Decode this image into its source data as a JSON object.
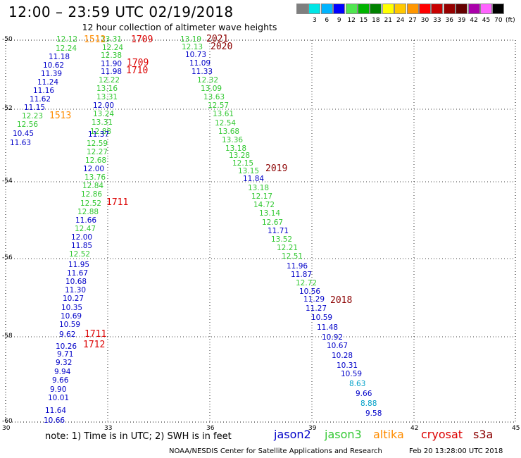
{
  "header": {
    "title": "12:00 – 23:59 UTC 02/19/2018",
    "subtitle": "12 hour collection of altimeter wave heights"
  },
  "color_scale": {
    "unit": "(ft)",
    "bins": [
      {
        "label": "",
        "color": "#7f7f7f"
      },
      {
        "label": "3",
        "color": "#00e6e6"
      },
      {
        "label": "6",
        "color": "#00b4ff"
      },
      {
        "label": "9",
        "color": "#0000ff"
      },
      {
        "label": "12",
        "color": "#50e650"
      },
      {
        "label": "15",
        "color": "#00b400"
      },
      {
        "label": "18",
        "color": "#008200"
      },
      {
        "label": "21",
        "color": "#ffff00"
      },
      {
        "label": "24",
        "color": "#ffc800"
      },
      {
        "label": "27",
        "color": "#ff9600"
      },
      {
        "label": "30",
        "color": "#ff0000"
      },
      {
        "label": "33",
        "color": "#c80000"
      },
      {
        "label": "36",
        "color": "#960000"
      },
      {
        "label": "39",
        "color": "#640000"
      },
      {
        "label": "42",
        "color": "#aa00aa"
      },
      {
        "label": "45",
        "color": "#ff64ff"
      },
      {
        "label": "70",
        "color": "#000000"
      }
    ]
  },
  "axes": {
    "lon_ticks": [
      "30",
      "33",
      "36",
      "39",
      "42",
      "45"
    ],
    "lat_ticks": [
      "-50",
      "-52",
      "-54",
      "-56",
      "-58",
      "-60"
    ]
  },
  "satellite_colors": {
    "jason2": "#0000c8",
    "jason3": "#32c832",
    "altika": "#ff8c00",
    "cryosat": "#dc0000",
    "s3a": "#8b0000",
    "cyan": "#00a0c8"
  },
  "observations": [
    {
      "v": "12.12",
      "c": "jason3"
    },
    {
      "v": "12.24",
      "c": "jason3"
    },
    {
      "v": "11.18",
      "c": "jason2"
    },
    {
      "v": "10.62",
      "c": "jason2"
    },
    {
      "v": "11.39",
      "c": "jason2"
    },
    {
      "v": "11.24",
      "c": "jason2"
    },
    {
      "v": "11.16",
      "c": "jason2"
    },
    {
      "v": "11.62",
      "c": "jason2"
    },
    {
      "v": "11.15",
      "c": "jason2"
    },
    {
      "v": "12.23",
      "c": "jason3"
    },
    {
      "v": "12.56",
      "c": "jason3"
    },
    {
      "v": "10.45",
      "c": "jason2"
    },
    {
      "v": "11.63",
      "c": "jason2"
    },
    {
      "v": "13.31",
      "c": "jason3"
    },
    {
      "v": "12.24",
      "c": "jason3"
    },
    {
      "v": "12.38",
      "c": "jason3"
    },
    {
      "v": "11.90",
      "c": "jason2"
    },
    {
      "v": "11.98",
      "c": "jason2"
    },
    {
      "v": "12.22",
      "c": "jason3"
    },
    {
      "v": "13.16",
      "c": "jason3"
    },
    {
      "v": "13.31",
      "c": "jason3"
    },
    {
      "v": "12.00",
      "c": "jason2"
    },
    {
      "v": "13.24",
      "c": "jason3"
    },
    {
      "v": "13.31",
      "c": "jason3"
    },
    {
      "v": "12.88",
      "c": "jason3"
    },
    {
      "v": "11.37",
      "c": "jason2"
    },
    {
      "v": "12.59",
      "c": "jason3"
    },
    {
      "v": "12.27",
      "c": "jason3"
    },
    {
      "v": "12.68",
      "c": "jason3"
    },
    {
      "v": "12.00",
      "c": "jason2"
    },
    {
      "v": "13.76",
      "c": "jason3"
    },
    {
      "v": "12.84",
      "c": "jason3"
    },
    {
      "v": "12.86",
      "c": "jason3"
    },
    {
      "v": "12.52",
      "c": "jason3"
    },
    {
      "v": "12.88",
      "c": "jason3"
    },
    {
      "v": "11.66",
      "c": "jason2"
    },
    {
      "v": "12.47",
      "c": "jason3"
    },
    {
      "v": "12.00",
      "c": "jason2"
    },
    {
      "v": "11.85",
      "c": "jason2"
    },
    {
      "v": "12.52",
      "c": "jason3"
    },
    {
      "v": "11.95",
      "c": "jason2"
    },
    {
      "v": "11.67",
      "c": "jason2"
    },
    {
      "v": "10.68",
      "c": "jason2"
    },
    {
      "v": "11.30",
      "c": "jason2"
    },
    {
      "v": "10.27",
      "c": "jason2"
    },
    {
      "v": "10.35",
      "c": "jason2"
    },
    {
      "v": "10.69",
      "c": "jason2"
    },
    {
      "v": "10.59",
      "c": "jason2"
    },
    {
      "v": "9.62",
      "c": "jason2"
    },
    {
      "v": "10.26",
      "c": "jason2"
    },
    {
      "v": "9.71",
      "c": "jason2"
    },
    {
      "v": "9.32",
      "c": "jason2"
    },
    {
      "v": "9.94",
      "c": "jason2"
    },
    {
      "v": "9.66",
      "c": "jason2"
    },
    {
      "v": "9.90",
      "c": "jason2"
    },
    {
      "v": "10.01",
      "c": "jason2"
    },
    {
      "v": "11.64",
      "c": "jason2"
    },
    {
      "v": "10.66",
      "c": "jason2"
    },
    {
      "v": "13.19",
      "c": "jason3"
    },
    {
      "v": "12.13",
      "c": "jason3"
    },
    {
      "v": "10.73",
      "c": "jason2"
    },
    {
      "v": "11.09",
      "c": "jason2"
    },
    {
      "v": "11.33",
      "c": "jason2"
    },
    {
      "v": "12.32",
      "c": "jason3"
    },
    {
      "v": "13.09",
      "c": "jason3"
    },
    {
      "v": "13.63",
      "c": "jason3"
    },
    {
      "v": "12.57",
      "c": "jason3"
    },
    {
      "v": "13.61",
      "c": "jason3"
    },
    {
      "v": "12.54",
      "c": "jason3"
    },
    {
      "v": "13.68",
      "c": "jason3"
    },
    {
      "v": "13.36",
      "c": "jason3"
    },
    {
      "v": "13.18",
      "c": "jason3"
    },
    {
      "v": "13.28",
      "c": "jason3"
    },
    {
      "v": "12.15",
      "c": "jason3"
    },
    {
      "v": "13.15",
      "c": "jason3"
    },
    {
      "v": "11.84",
      "c": "jason2"
    },
    {
      "v": "13.18",
      "c": "jason3"
    },
    {
      "v": "12.17",
      "c": "jason3"
    },
    {
      "v": "14.72",
      "c": "jason3"
    },
    {
      "v": "13.14",
      "c": "jason3"
    },
    {
      "v": "12.67",
      "c": "jason3"
    },
    {
      "v": "11.71",
      "c": "jason2"
    },
    {
      "v": "13.52",
      "c": "jason3"
    },
    {
      "v": "12.21",
      "c": "jason3"
    },
    {
      "v": "12.51",
      "c": "jason3"
    },
    {
      "v": "11.96",
      "c": "jason2"
    },
    {
      "v": "11.87",
      "c": "jason2"
    },
    {
      "v": "12.72",
      "c": "jason3"
    },
    {
      "v": "10.56",
      "c": "jason2"
    },
    {
      "v": "11.29",
      "c": "jason2"
    },
    {
      "v": "11.27",
      "c": "jason2"
    },
    {
      "v": "10.59",
      "c": "jason2"
    },
    {
      "v": "11.48",
      "c": "jason2"
    },
    {
      "v": "10.92",
      "c": "jason2"
    },
    {
      "v": "10.67",
      "c": "jason2"
    },
    {
      "v": "10.28",
      "c": "jason2"
    },
    {
      "v": "10.31",
      "c": "jason2"
    },
    {
      "v": "10.59",
      "c": "jason2"
    },
    {
      "v": "8.63",
      "c": "cyan"
    },
    {
      "v": "9.66",
      "c": "jason2"
    },
    {
      "v": "8.88",
      "c": "cyan"
    },
    {
      "v": "9.58",
      "c": "jason2"
    }
  ],
  "pass_labels": [
    {
      "t": "1512",
      "c": "altika"
    },
    {
      "t": "1709",
      "c": "cryosat"
    },
    {
      "t": "2021",
      "c": "s3a"
    },
    {
      "t": "2020",
      "c": "s3a"
    },
    {
      "t": "1709",
      "c": "cryosat"
    },
    {
      "t": "1710",
      "c": "cryosat"
    },
    {
      "t": "1513",
      "c": "altika"
    },
    {
      "t": "2019",
      "c": "s3a"
    },
    {
      "t": "1711",
      "c": "cryosat"
    },
    {
      "t": "2018",
      "c": "s3a"
    },
    {
      "t": "1711",
      "c": "cryosat"
    },
    {
      "t": "1712",
      "c": "cryosat"
    }
  ],
  "footer": {
    "note": "note: 1) Time is in UTC; 2) SWH is in feet",
    "legend": [
      {
        "name": "jason2",
        "color": "#0000c8"
      },
      {
        "name": "jason3",
        "color": "#32c832"
      },
      {
        "name": "altika",
        "color": "#ff8c00"
      },
      {
        "name": "cryosat",
        "color": "#dc0000"
      },
      {
        "name": "s3a",
        "color": "#8b0000"
      }
    ],
    "credit": "NOAA/NESDIS Center for Satellite Applications and Research",
    "timestamp": "Feb 20 13:28:00 UTC 2018"
  }
}
